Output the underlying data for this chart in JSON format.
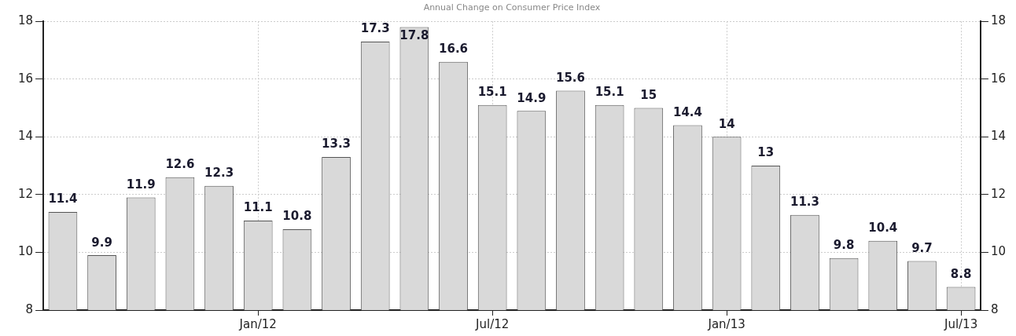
{
  "chart_data": {
    "type": "bar",
    "title": "Annual Change on Consumer Price Index",
    "categories": [
      null,
      null,
      null,
      null,
      null,
      "Jan/12",
      null,
      null,
      null,
      null,
      null,
      "Jul/12",
      null,
      null,
      null,
      null,
      null,
      "Jan/13",
      null,
      null,
      null,
      null,
      null,
      "Jul/13"
    ],
    "values": [
      11.4,
      9.9,
      11.9,
      12.6,
      12.3,
      11.1,
      10.8,
      13.3,
      17.3,
      17.8,
      16.6,
      15.1,
      14.9,
      15.6,
      15.1,
      15,
      14.4,
      14,
      13,
      11.3,
      9.8,
      10.4,
      9.7,
      8.8
    ],
    "color": "#d9d9d9",
    "ylim": [
      8,
      18
    ],
    "yticks": [
      8,
      10,
      12,
      14,
      16,
      18
    ],
    "y2lim": [
      8,
      18
    ],
    "y2ticks": [
      8,
      10,
      12,
      14,
      16,
      18
    ],
    "grid": true,
    "legend": false,
    "data_labels": true
  }
}
